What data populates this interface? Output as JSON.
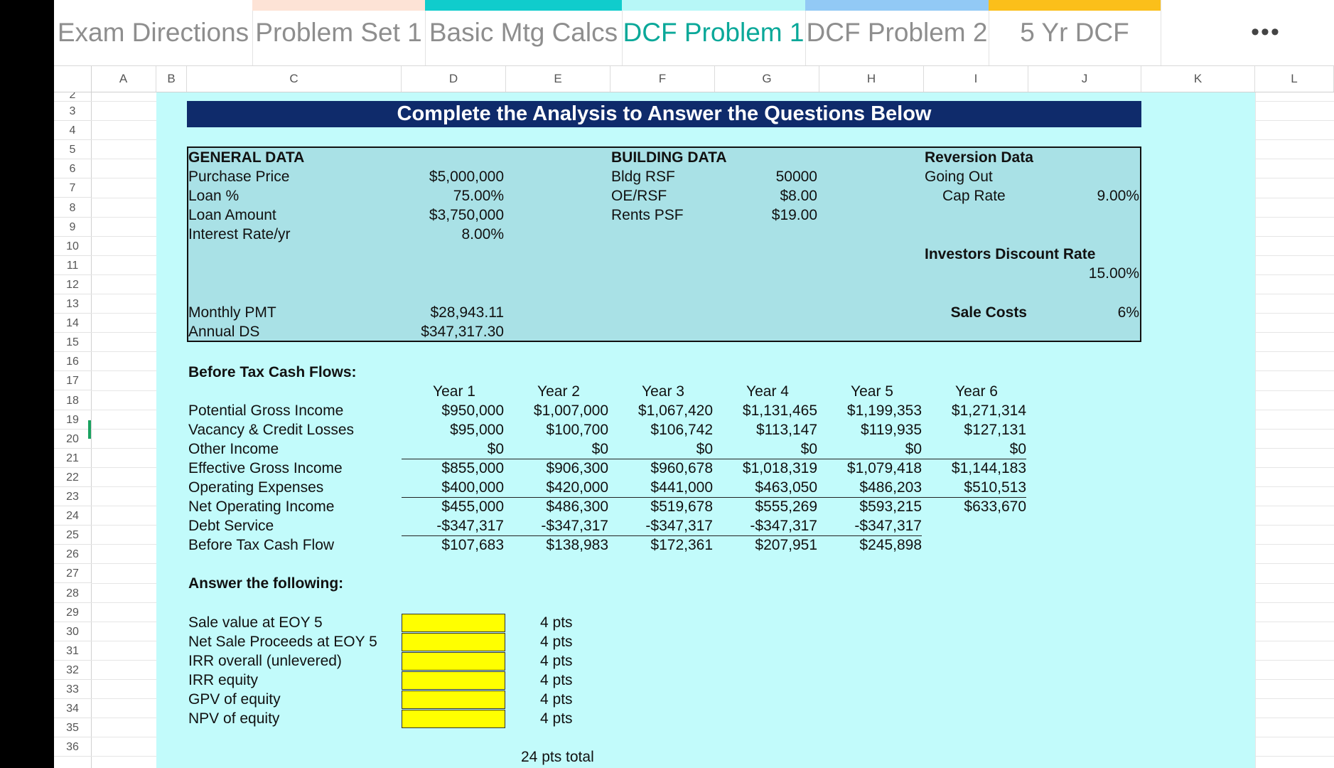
{
  "tabs": [
    {
      "label": "Exam Directions",
      "accent": ""
    },
    {
      "label": "Problem Set 1",
      "accent": "#fde3d6"
    },
    {
      "label": "Basic Mtg Calcs",
      "accent": "#10cccc"
    },
    {
      "label": "DCF Problem 1",
      "accent": "#b7f7f7"
    },
    {
      "label": "DCF Problem 2",
      "accent": "#92c9f5"
    },
    {
      "label": "5 Yr DCF",
      "accent": "#fbbf1a"
    }
  ],
  "more_glyph": "•••",
  "columns": [
    "A",
    "B",
    "C",
    "D",
    "E",
    "F",
    "G",
    "H",
    "I",
    "J",
    "K",
    "L"
  ],
  "rows": [
    "2",
    "3",
    "4",
    "5",
    "6",
    "7",
    "8",
    "9",
    "10",
    "11",
    "12",
    "13",
    "14",
    "15",
    "16",
    "17",
    "18",
    "19",
    "20",
    "21",
    "22",
    "23",
    "24",
    "25",
    "26",
    "27",
    "28",
    "29",
    "30",
    "31",
    "32",
    "33",
    "34",
    "35",
    "36"
  ],
  "banner": "Complete the Analysis to Answer the Questions Below",
  "general": {
    "heading": "GENERAL DATA",
    "purchase_price_label": "Purchase Price",
    "purchase_price": "$5,000,000",
    "loan_pct_label": "Loan %",
    "loan_pct": "75.00%",
    "loan_amount_label": "Loan Amount",
    "loan_amount": "$3,750,000",
    "interest_label": "Interest Rate/yr",
    "interest": "8.00%",
    "monthly_pmt_label": "Monthly PMT",
    "monthly_pmt": "$28,943.11",
    "annual_ds_label": "Annual DS",
    "annual_ds": "$347,317.30"
  },
  "building": {
    "heading": "BUILDING DATA",
    "rsf_label": "Bldg RSF",
    "rsf": "50000",
    "oe_label": "OE/RSF",
    "oe": "$8.00",
    "rents_label": "Rents PSF",
    "rents": "$19.00"
  },
  "reversion": {
    "heading": "Reversion Data",
    "going_out_label": "Going Out",
    "cap_rate_label": "Cap Rate",
    "cap_rate": "9.00%",
    "discount_label": "Investors Discount Rate",
    "discount": "15.00%",
    "sale_costs_label": "Sale Costs",
    "sale_costs": "6%"
  },
  "cashflow": {
    "heading": "Before Tax Cash Flows:",
    "years": [
      "Year 1",
      "Year 2",
      "Year 3",
      "Year 4",
      "Year 5",
      "Year 6"
    ],
    "lines": [
      {
        "label": "Potential Gross Income",
        "values": [
          "$950,000",
          "$1,007,000",
          "$1,067,420",
          "$1,131,465",
          "$1,199,353",
          "$1,271,314"
        ]
      },
      {
        "label": "Vacancy & Credit Losses",
        "values": [
          "$95,000",
          "$100,700",
          "$106,742",
          "$113,147",
          "$119,935",
          "$127,131"
        ]
      },
      {
        "label": "Other Income",
        "values": [
          "$0",
          "$0",
          "$0",
          "$0",
          "$0",
          "$0"
        ]
      },
      {
        "label": "Effective Gross Income",
        "values": [
          "$855,000",
          "$906,300",
          "$960,678",
          "$1,018,319",
          "$1,079,418",
          "$1,144,183"
        ]
      },
      {
        "label": "Operating Expenses",
        "values": [
          "$400,000",
          "$420,000",
          "$441,000",
          "$463,050",
          "$486,203",
          "$510,513"
        ]
      },
      {
        "label": "Net Operating Income",
        "values": [
          "$455,000",
          "$486,300",
          "$519,678",
          "$555,269",
          "$593,215",
          "$633,670"
        ]
      },
      {
        "label": "Debt Service",
        "values": [
          "-$347,317",
          "-$347,317",
          "-$347,317",
          "-$347,317",
          "-$347,317",
          ""
        ]
      },
      {
        "label": "Before Tax Cash Flow",
        "values": [
          "$107,683",
          "$138,983",
          "$172,361",
          "$207,951",
          "$245,898",
          ""
        ]
      }
    ]
  },
  "questions": {
    "heading": "Answer the following:",
    "items": [
      {
        "label": "Sale value at EOY 5",
        "pts": "4 pts"
      },
      {
        "label": "Net Sale Proceeds at EOY 5",
        "pts": "4 pts"
      },
      {
        "label": "IRR overall (unlevered)",
        "pts": "4 pts"
      },
      {
        "label": "IRR equity",
        "pts": "4 pts"
      },
      {
        "label": "GPV of equity",
        "pts": "4 pts"
      },
      {
        "label": "NPV of equity",
        "pts": "4 pts"
      }
    ],
    "total": "24 pts total"
  }
}
